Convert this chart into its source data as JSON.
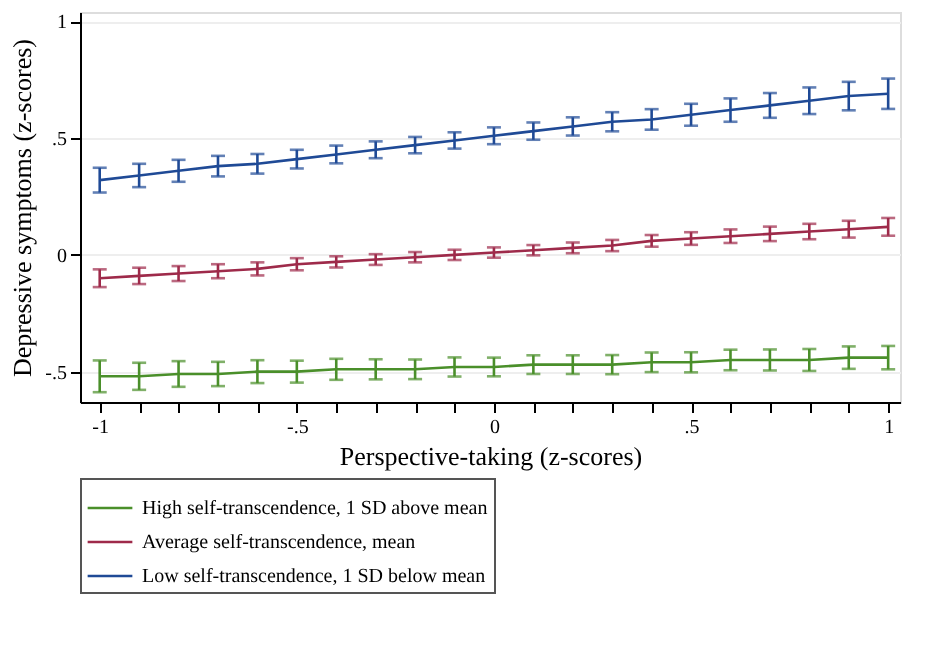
{
  "chart_data": {
    "type": "line",
    "xlabel": "Perspective-taking (z-scores)",
    "ylabel": "Depressive symptoms (z-scores)",
    "x": [
      -1,
      -0.9,
      -0.8,
      -0.7,
      -0.6,
      -0.5,
      -0.4,
      -0.3,
      -0.2,
      -0.1,
      0,
      0.1,
      0.2,
      0.3,
      0.4,
      0.5,
      0.6,
      0.7,
      0.8,
      0.9,
      1
    ],
    "xlim": [
      -1.05,
      1.03
    ],
    "ylim": [
      -0.63,
      1.04
    ],
    "xticks": [
      {
        "value": -1,
        "label": "-1"
      },
      {
        "value": -0.9,
        "label": null
      },
      {
        "value": -0.8,
        "label": null
      },
      {
        "value": -0.7,
        "label": null
      },
      {
        "value": -0.6,
        "label": null
      },
      {
        "value": -0.5,
        "label": "-.5"
      },
      {
        "value": -0.4,
        "label": null
      },
      {
        "value": -0.3,
        "label": null
      },
      {
        "value": -0.2,
        "label": null
      },
      {
        "value": -0.1,
        "label": null
      },
      0,
      {
        "value": 0.1,
        "label": null
      },
      {
        "value": 0.2,
        "label": null
      },
      {
        "value": 0.3,
        "label": null
      },
      {
        "value": 0.4,
        "label": null
      },
      {
        "value": 0.5,
        "label": ".5"
      },
      {
        "value": 0.6,
        "label": null
      },
      {
        "value": 0.7,
        "label": null
      },
      {
        "value": 0.8,
        "label": null
      },
      {
        "value": 0.9,
        "label": null
      },
      1
    ],
    "yticks": [
      {
        "value": -0.5,
        "label": "-.5"
      },
      0,
      {
        "value": 0.5,
        "label": ".5"
      },
      1
    ],
    "grid": "y",
    "legend": "bottom",
    "marker": "none",
    "line_style": "solid",
    "series": [
      {
        "name": "High self-transcendence, 1 SD above mean",
        "color": "#4a8f2a",
        "values": [
          -0.52,
          -0.52,
          -0.51,
          -0.51,
          -0.5,
          -0.5,
          -0.49,
          -0.49,
          -0.49,
          -0.48,
          -0.48,
          -0.47,
          -0.47,
          -0.47,
          -0.46,
          -0.46,
          -0.45,
          -0.45,
          -0.45,
          -0.44,
          -0.44
        ],
        "errors": [
          0.068,
          0.058,
          0.055,
          0.052,
          0.049,
          0.047,
          0.045,
          0.043,
          0.042,
          0.041,
          0.04,
          0.04,
          0.04,
          0.041,
          0.042,
          0.043,
          0.044,
          0.045,
          0.047,
          0.048,
          0.05
        ]
      },
      {
        "name": "Average self-transcendence, mean",
        "color": "#9e2a4a",
        "values": [
          -0.1,
          -0.09,
          -0.08,
          -0.07,
          -0.06,
          -0.04,
          -0.03,
          -0.02,
          -0.01,
          0.0,
          0.01,
          0.02,
          0.03,
          0.04,
          0.06,
          0.07,
          0.08,
          0.09,
          0.1,
          0.11,
          0.12
        ],
        "errors": [
          0.038,
          0.035,
          0.032,
          0.03,
          0.028,
          0.026,
          0.024,
          0.023,
          0.022,
          0.022,
          0.022,
          0.022,
          0.023,
          0.024,
          0.025,
          0.027,
          0.029,
          0.031,
          0.033,
          0.036,
          0.038
        ]
      },
      {
        "name": "Low self-transcendence, 1 SD below mean",
        "color": "#1f4a96",
        "values": [
          0.32,
          0.34,
          0.36,
          0.38,
          0.39,
          0.41,
          0.43,
          0.45,
          0.47,
          0.49,
          0.51,
          0.53,
          0.55,
          0.57,
          0.58,
          0.6,
          0.62,
          0.64,
          0.66,
          0.68,
          0.69
        ],
        "errors": [
          0.053,
          0.05,
          0.047,
          0.044,
          0.042,
          0.04,
          0.038,
          0.036,
          0.035,
          0.035,
          0.036,
          0.037,
          0.039,
          0.041,
          0.044,
          0.047,
          0.05,
          0.053,
          0.057,
          0.061,
          0.065
        ]
      }
    ]
  }
}
